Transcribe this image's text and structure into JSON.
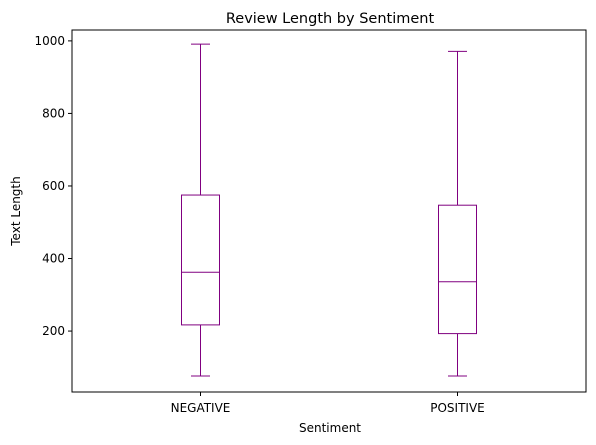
{
  "chart_data": {
    "type": "box",
    "title": "Review Length by Sentiment",
    "xlabel": "Sentiment",
    "ylabel": "Text Length",
    "categories": [
      "NEGATIVE",
      "POSITIVE"
    ],
    "boxes": [
      {
        "category": "NEGATIVE",
        "whisker_low": 76,
        "q1": 217,
        "median": 362,
        "q3": 575,
        "whisker_high": 991
      },
      {
        "category": "POSITIVE",
        "whisker_low": 76,
        "q1": 193,
        "median": 336,
        "q3": 547,
        "whisker_high": 971
      }
    ],
    "ylim": [
      32,
      1030
    ],
    "yticks": [
      200,
      400,
      600,
      800,
      1000
    ],
    "grid": false,
    "color": "#800080"
  }
}
